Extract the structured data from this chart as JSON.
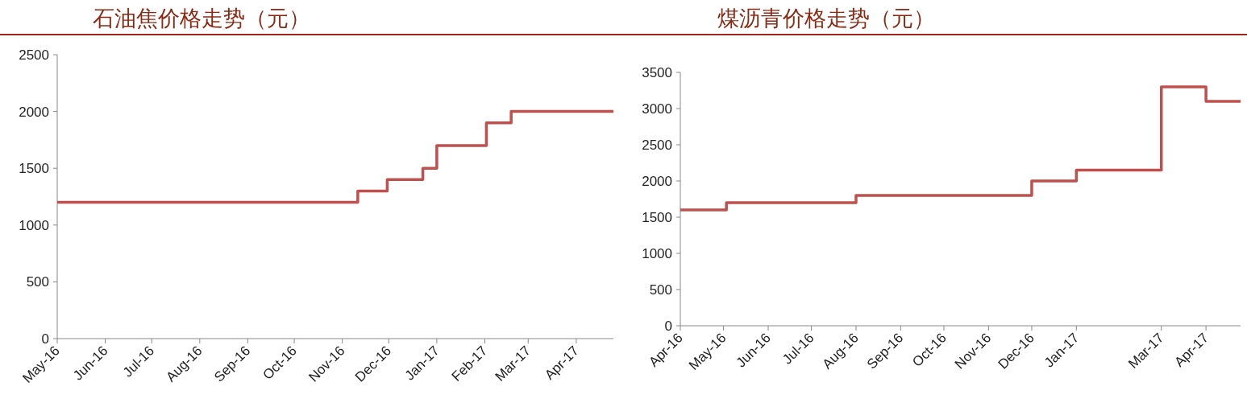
{
  "chart_data": [
    {
      "type": "step",
      "title": "石油焦价格走势（元）",
      "x": [
        "2016-05-01",
        "2016-11-11",
        "2016-11-30",
        "2016-12-23",
        "2017-01-01",
        "2017-02-02",
        "2017-02-18",
        "2017-04-25"
      ],
      "series": [
        {
          "color": "#c0504d",
          "values": [
            1200,
            1300,
            1400,
            1500,
            1700,
            1900,
            2000,
            2000
          ]
        }
      ],
      "xlim": [
        "2016-05-01",
        "2017-04-25"
      ],
      "xticks": [
        {
          "value": "2016-05-01",
          "label": "May-16"
        },
        {
          "value": "2016-06-01",
          "label": "Jun-16"
        },
        {
          "value": "2016-07-01",
          "label": "Jul-16"
        },
        {
          "value": "2016-08-01",
          "label": "Aug-16"
        },
        {
          "value": "2016-09-01",
          "label": "Sep-16"
        },
        {
          "value": "2016-10-01",
          "label": "Oct-16"
        },
        {
          "value": "2016-11-01",
          "label": "Nov-16"
        },
        {
          "value": "2016-12-01",
          "label": "Dec-16"
        },
        {
          "value": "2017-01-01",
          "label": "Jan-17"
        },
        {
          "value": "2017-02-01",
          "label": "Feb-17"
        },
        {
          "value": "2017-03-01",
          "label": "Mar-17"
        },
        {
          "value": "2017-04-01",
          "label": "Apr-17"
        }
      ],
      "ylim": [
        0,
        2500
      ],
      "yticks": [
        0,
        500,
        1000,
        1500,
        2000,
        2500
      ]
    },
    {
      "type": "step",
      "title": "煤沥青价格走势（元）",
      "x": [
        "2016-04-01",
        "2016-05-03",
        "2016-08-01",
        "2016-12-01",
        "2017-01-01",
        "2017-03-01",
        "2017-04-01",
        "2017-04-25"
      ],
      "series": [
        {
          "color": "#c0504d",
          "values": [
            1600,
            1700,
            1800,
            2000,
            2150,
            3300,
            3100,
            3100
          ]
        }
      ],
      "xlim": [
        "2016-04-01",
        "2017-04-25"
      ],
      "xticks": [
        {
          "value": "2016-04-01",
          "label": "Apr-16"
        },
        {
          "value": "2016-05-01",
          "label": "May-16"
        },
        {
          "value": "2016-06-01",
          "label": "Jun-16"
        },
        {
          "value": "2016-07-01",
          "label": "Jul-16"
        },
        {
          "value": "2016-08-01",
          "label": "Aug-16"
        },
        {
          "value": "2016-09-01",
          "label": "Sep-16"
        },
        {
          "value": "2016-10-01",
          "label": "Oct-16"
        },
        {
          "value": "2016-11-01",
          "label": "Nov-16"
        },
        {
          "value": "2016-12-01",
          "label": "Dec-16"
        },
        {
          "value": "2017-01-01",
          "label": "Jan-17"
        },
        {
          "value": "2017-03-01",
          "label": "Mar-17"
        },
        {
          "value": "2017-04-01",
          "label": "Apr-17"
        }
      ],
      "ylim": [
        0,
        3500
      ],
      "yticks": [
        0,
        500,
        1000,
        1500,
        2000,
        2500,
        3000,
        3500
      ]
    }
  ]
}
